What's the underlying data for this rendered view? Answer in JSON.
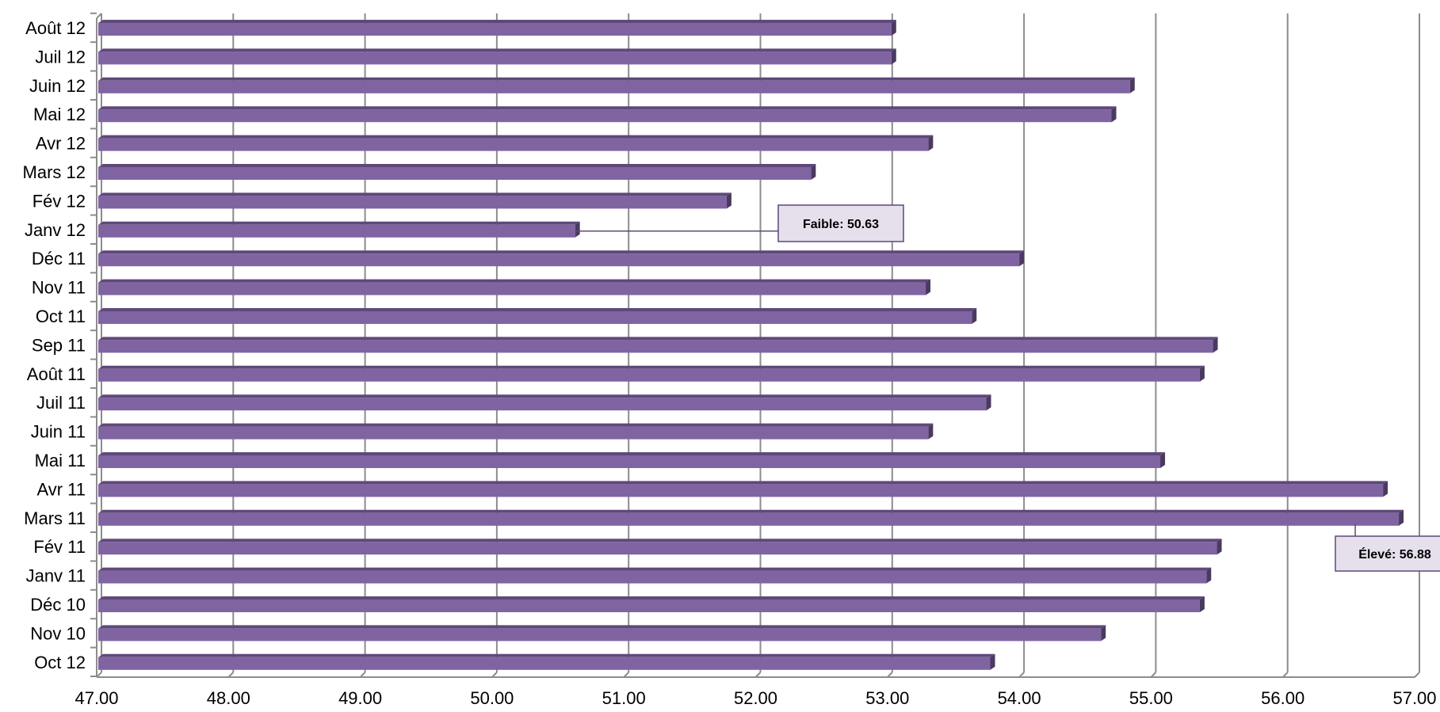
{
  "chart_data": {
    "type": "bar",
    "orientation": "horizontal",
    "categories": [
      "Août 12",
      "Juil 12",
      "Juin 12",
      "Mai 12",
      "Avr 12",
      "Mars 12",
      "Fév 12",
      "Janv 12",
      "Déc 11",
      "Nov 11",
      "Oct 11",
      "Sep 11",
      "Août 11",
      "Juil 11",
      "Juin 11",
      "Mai 11",
      "Avr 11",
      "Mars 11",
      "Fév 11",
      "Janv 11",
      "Déc 10",
      "Nov 10",
      "Oct 12"
    ],
    "values": [
      53.03,
      53.03,
      54.84,
      54.7,
      53.31,
      52.42,
      51.78,
      50.63,
      54.0,
      53.29,
      53.64,
      55.47,
      55.37,
      53.75,
      53.31,
      55.07,
      56.76,
      56.88,
      55.5,
      55.42,
      55.37,
      54.62,
      53.78
    ],
    "xlim": [
      47.0,
      57.0
    ],
    "x_ticks": [
      "47.00",
      "48.00",
      "49.00",
      "50.00",
      "51.00",
      "52.00",
      "53.00",
      "54.00",
      "55.00",
      "56.00",
      "57.00"
    ],
    "x_tick_values": [
      47,
      48,
      49,
      50,
      51,
      52,
      53,
      54,
      55,
      56,
      57
    ],
    "grid": true,
    "bar_color": "#8064a2",
    "bar_top_color": "#5f497a",
    "annotations": [
      {
        "category": "Janv 12",
        "text": "Faible: 50.63"
      },
      {
        "category": "Mars 11",
        "text": "Élevé: 56.88"
      }
    ]
  }
}
